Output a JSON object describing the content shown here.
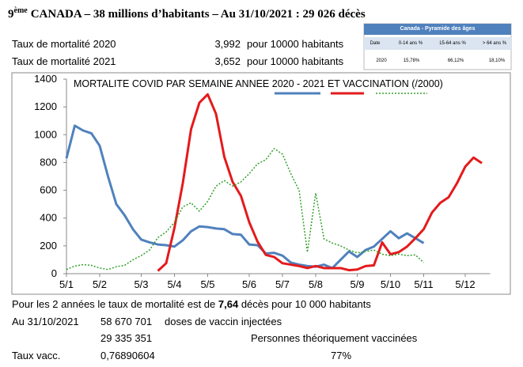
{
  "header": {
    "title_number": "9",
    "title_sup": "ème",
    "title_rest": "CANADA – 38 millions d’habitants – Au 31/10/2021 : 29 026 décès"
  },
  "stats": [
    [
      "Taux de mortalité 2020",
      "3,992",
      "pour 10000 habitants"
    ],
    [
      "Taux de mortalité 2021",
      "3,652",
      "pour 10000 habitants"
    ]
  ],
  "pyramid": {
    "title": "Canada - Pyramide des âges",
    "headers": [
      "Date",
      "0-14 ans %",
      "15-64 ans %",
      "> 64 ans %"
    ],
    "row": [
      "2020",
      "15,78%",
      "66,12%",
      "18,10%"
    ]
  },
  "chart_data": {
    "type": "line",
    "title": "MORTALITE COVID PAR SEMAINE ANNEE 2020 - 2021 ET VACCINATION (/2000)",
    "categories": [
      "5/1",
      null,
      null,
      null,
      "5/2",
      null,
      null,
      null,
      null,
      "5/3",
      null,
      null,
      null,
      "5/4",
      null,
      null,
      null,
      "5/5",
      null,
      null,
      null,
      null,
      "5/6",
      null,
      null,
      null,
      "5/7",
      null,
      null,
      null,
      "5/8",
      null,
      null,
      null,
      null,
      "5/9",
      null,
      null,
      null,
      "5/10",
      null,
      null,
      null,
      "5/11",
      null,
      null,
      null,
      null,
      "5/12",
      null,
      null,
      null
    ],
    "ylim": [
      0,
      1400
    ],
    "yticks": [
      0,
      200,
      400,
      600,
      800,
      1000,
      1200,
      1400
    ],
    "series": [
      {
        "color": "#4f81bd",
        "dash": "solid",
        "values": [
          830,
          1065,
          1030,
          1010,
          920,
          700,
          500,
          420,
          320,
          245,
          225,
          210,
          205,
          195,
          240,
          305,
          340,
          335,
          325,
          320,
          285,
          280,
          210,
          205,
          145,
          150,
          130,
          80,
          65,
          55,
          50,
          65,
          40,
          100,
          160,
          120,
          170,
          195,
          250,
          305,
          255,
          290,
          255,
          220,
          null,
          null,
          null,
          null,
          null,
          null,
          null,
          null
        ]
      },
      {
        "color": "#e41a1c",
        "dash": "solid",
        "values": [
          null,
          null,
          null,
          null,
          null,
          null,
          null,
          null,
          null,
          null,
          null,
          20,
          75,
          330,
          650,
          1040,
          1230,
          1290,
          1150,
          840,
          660,
          560,
          370,
          230,
          135,
          120,
          75,
          65,
          55,
          40,
          55,
          40,
          40,
          40,
          25,
          30,
          55,
          60,
          225,
          140,
          155,
          195,
          255,
          320,
          440,
          510,
          550,
          650,
          770,
          835,
          795,
          null
        ]
      },
      {
        "color": "#33a02c",
        "dash": "dotted",
        "values": [
          30,
          55,
          65,
          60,
          40,
          30,
          50,
          60,
          100,
          130,
          170,
          260,
          300,
          370,
          480,
          510,
          450,
          520,
          630,
          670,
          630,
          660,
          720,
          790,
          820,
          900,
          860,
          720,
          600,
          155,
          580,
          250,
          220,
          200,
          170,
          150,
          160,
          170,
          140,
          130,
          140,
          130,
          135,
          80,
          null,
          null,
          null,
          null,
          null,
          null,
          null,
          null
        ]
      }
    ]
  },
  "footer": {
    "line1": [
      "Pour les 2 années le taux de mortalité est de ",
      "7,64",
      " décès pour 10 000 habitants"
    ],
    "rows": [
      [
        "Au 31/10/2021",
        "58 670 701",
        "doses de vaccin injectées"
      ],
      [
        "29 335 351",
        "Personnes théoriquement vaccinées"
      ],
      [
        "Taux vacc.",
        "0,76890604",
        "77%"
      ]
    ]
  }
}
